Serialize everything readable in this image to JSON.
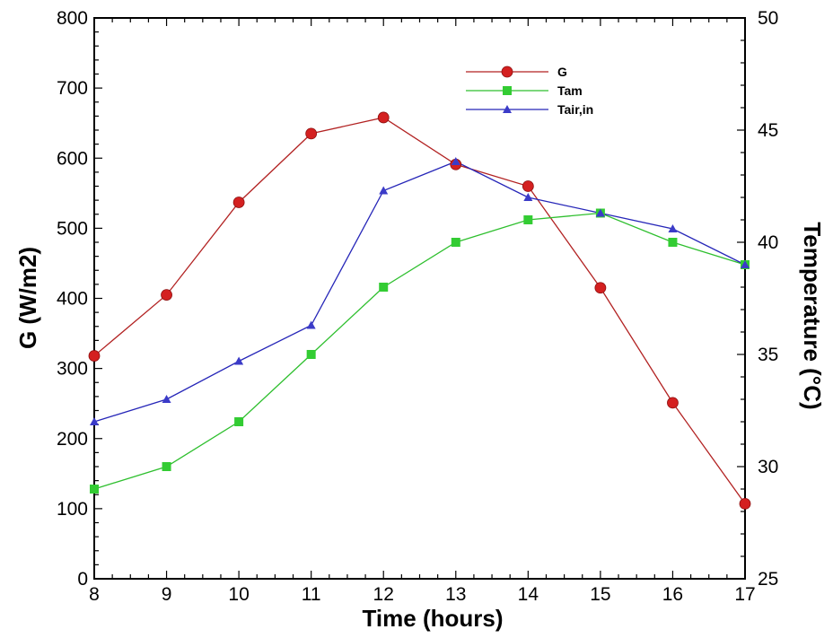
{
  "chart_data": {
    "type": "line",
    "title": "",
    "xlabel": "Time (hours)",
    "ylabel": "G (W/m2)",
    "y2label": "Temperature (°C)",
    "xlim": [
      8,
      17
    ],
    "ylim": [
      0,
      800
    ],
    "y2lim": [
      25,
      50
    ],
    "x_ticks": [
      "8",
      "9",
      "10",
      "11",
      "12",
      "13",
      "14",
      "15",
      "16",
      "17"
    ],
    "y_ticks": [
      "0",
      "100",
      "200",
      "300",
      "400",
      "500",
      "600",
      "700",
      "800"
    ],
    "y2_ticks": [
      "25",
      "30",
      "35",
      "40",
      "45",
      "50"
    ],
    "grid": false,
    "legend_position": "top-center",
    "x": [
      8,
      9,
      10,
      11,
      12,
      13,
      14,
      15,
      16,
      17
    ],
    "series": [
      {
        "name": "G",
        "axis": "left",
        "marker": "circle",
        "color": "#b22222",
        "marker_color": "#d42020",
        "values": [
          318,
          405,
          537,
          635,
          658,
          591,
          560,
          415,
          251,
          107
        ]
      },
      {
        "name": "Tam",
        "axis": "right",
        "marker": "square",
        "color": "#2ebf2e",
        "marker_color": "#33cc33",
        "values": [
          29.0,
          30.0,
          32.0,
          35.0,
          38.0,
          40.0,
          41.0,
          41.3,
          40.0,
          39.0
        ]
      },
      {
        "name": "Tair,in",
        "axis": "right",
        "marker": "triangle",
        "color": "#2626b8",
        "marker_color": "#3b3bc8",
        "values": [
          32.0,
          33.0,
          34.7,
          36.3,
          42.3,
          43.6,
          42.0,
          41.3,
          40.6,
          39.0
        ]
      }
    ]
  }
}
